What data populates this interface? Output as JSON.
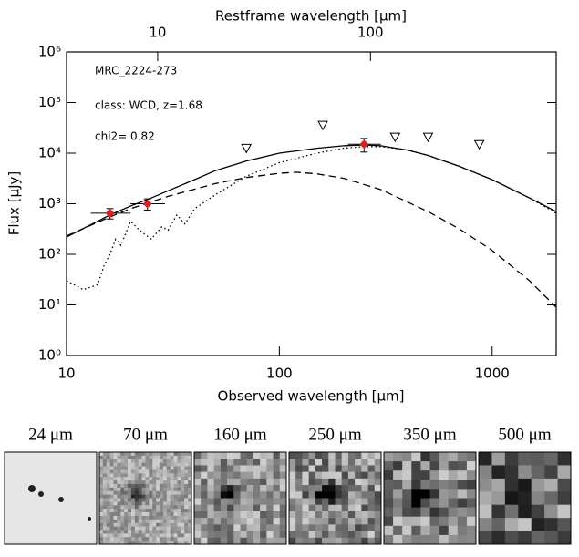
{
  "chart_data": {
    "type": "line",
    "xlabel": "Observed wavelength [μm]",
    "ylabel": "Flux [μJy]",
    "x2label": "Restframe wavelength [μm]",
    "xlog": true,
    "ylog": true,
    "xlim": [
      10,
      2000
    ],
    "xticks": [
      10,
      100,
      1000
    ],
    "x2lim": [
      3.731,
      746.3
    ],
    "x2ticks": [
      10,
      100
    ],
    "ylim": [
      1,
      1000000
    ],
    "yticks": [
      {
        "value": 1,
        "label": "10⁰"
      },
      {
        "value": 10,
        "label": "10¹"
      },
      {
        "value": 100,
        "label": "10²"
      },
      {
        "value": 1000,
        "label": "10³"
      },
      {
        "value": 10000,
        "label": "10⁴"
      },
      {
        "value": 100000,
        "label": "10⁵"
      },
      {
        "value": 1000000,
        "label": "10⁶"
      }
    ],
    "annotations": [
      "MRC_2224-273",
      "class: WCD, z=1.68",
      "chi2=  0.82"
    ],
    "series": [
      {
        "dash": "solid",
        "color": "#000000",
        "x": [
          10,
          16,
          20,
          25,
          30,
          40,
          50,
          70,
          100,
          150,
          200,
          250,
          300,
          400,
          500,
          700,
          1000,
          1500,
          2000
        ],
        "values": [
          220,
          600,
          900,
          1300,
          1800,
          3000,
          4500,
          7000,
          10000,
          12500,
          14000,
          14500,
          14000,
          11500,
          9000,
          5500,
          3000,
          1300,
          700
        ]
      },
      {
        "dash": "dashed",
        "color": "#000000",
        "x": [
          10,
          16,
          20,
          30,
          50,
          70,
          100,
          120,
          150,
          200,
          300,
          500,
          700,
          1000,
          1500,
          2000
        ],
        "values": [
          230,
          550,
          800,
          1400,
          2500,
          3300,
          4000,
          4200,
          3900,
          3200,
          1900,
          700,
          320,
          120,
          30,
          9
        ]
      },
      {
        "dash": "dotted",
        "color": "#000000",
        "x": [
          10,
          12,
          14,
          15,
          16,
          17,
          18,
          20,
          22,
          25,
          28,
          30,
          33,
          36,
          40,
          50,
          70,
          100,
          150,
          200,
          250,
          300,
          400,
          500,
          700,
          1000,
          1500,
          2000
        ],
        "values": [
          30,
          20,
          25,
          60,
          100,
          200,
          150,
          450,
          300,
          200,
          350,
          300,
          600,
          400,
          800,
          1500,
          3500,
          6500,
          10000,
          12500,
          13500,
          13500,
          11500,
          9000,
          5500,
          3000,
          1300,
          650
        ]
      }
    ],
    "points": {
      "color": "#e02020",
      "x": [
        16,
        24,
        250
      ],
      "values": [
        650,
        1000,
        15000
      ],
      "errors": [
        150,
        250,
        4500
      ],
      "xlo": [
        13,
        20,
        210
      ],
      "xhi": [
        20,
        29,
        300
      ]
    },
    "upper_limits": {
      "x": [
        70,
        160,
        350,
        500,
        870
      ],
      "values": [
        12600,
        36000,
        21000,
        21000,
        15000
      ]
    }
  },
  "cutouts": [
    "24 μm",
    "70 μm",
    "160 μm",
    "250 μm",
    "350 μm",
    "500 μm"
  ]
}
